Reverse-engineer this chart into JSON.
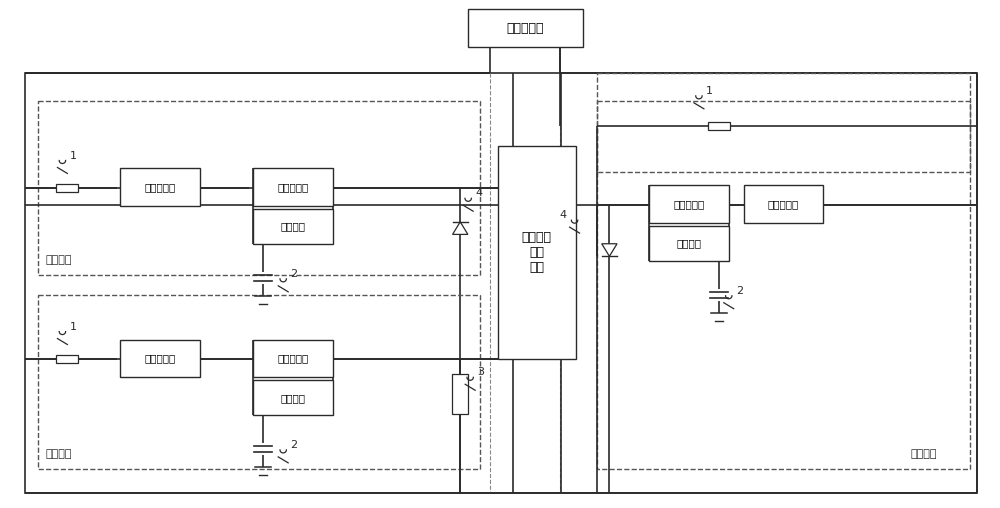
{
  "title_ac": "交流电压源",
  "center_label": "电磁斥力\n操作\n机构",
  "label_fen": "分闸回路",
  "label_he": "合闸回路",
  "sw_semi": "半导体开关",
  "sw_manual": "手动开关",
  "n1": "1",
  "n2": "2",
  "n3": "3",
  "n4": "4",
  "lc": "#2a2a2a",
  "dc": "#555555",
  "bg": "#ffffff"
}
